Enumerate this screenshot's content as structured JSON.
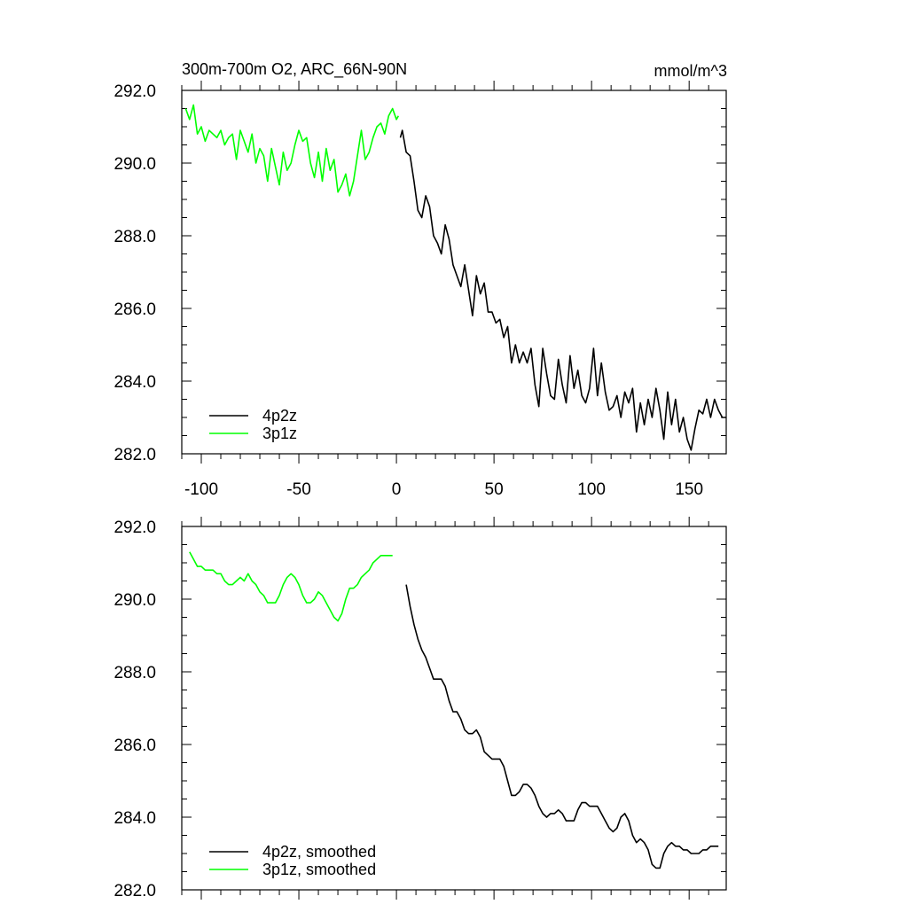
{
  "chart_data": [
    {
      "type": "line",
      "title": "300m-700m O2, ARC_66N-90N",
      "units": "mmol/m^3",
      "xlim": [
        -110,
        169
      ],
      "ylim": [
        282.0,
        292.0
      ],
      "x_ticks": [
        -100,
        -50,
        0,
        50,
        100,
        150
      ],
      "x_tick_labels": [
        "-100",
        "-50",
        "0",
        "50",
        "100",
        "150"
      ],
      "y_ticks": [
        282,
        284,
        286,
        288,
        290,
        292
      ],
      "y_tick_labels": [
        "282.0",
        "284.0",
        "286.0",
        "288.0",
        "290.0",
        "292.0"
      ],
      "legend_position": "bottom-left",
      "series": [
        {
          "name": "4p2z",
          "color": "#000000",
          "x": [
            2,
            3,
            5,
            7,
            9,
            11,
            13,
            15,
            17,
            19,
            21,
            23,
            25,
            27,
            29,
            31,
            33,
            35,
            37,
            39,
            41,
            43,
            45,
            47,
            49,
            51,
            53,
            55,
            57,
            59,
            61,
            63,
            65,
            67,
            69,
            71,
            73,
            75,
            77,
            79,
            81,
            83,
            85,
            87,
            89,
            91,
            93,
            95,
            97,
            99,
            101,
            103,
            105,
            107,
            109,
            111,
            113,
            115,
            117,
            119,
            121,
            123,
            125,
            127,
            129,
            131,
            133,
            135,
            137,
            139,
            141,
            143,
            145,
            147,
            149,
            151,
            153,
            155,
            157,
            159,
            161,
            163,
            165,
            167,
            169
          ],
          "values": [
            290.7,
            290.9,
            290.3,
            290.2,
            289.5,
            288.7,
            288.5,
            289.1,
            288.8,
            288.0,
            287.8,
            287.5,
            288.3,
            287.9,
            287.2,
            286.9,
            286.6,
            287.2,
            286.5,
            285.8,
            286.9,
            286.4,
            286.7,
            285.9,
            285.9,
            285.6,
            285.7,
            285.2,
            285.5,
            284.5,
            285.0,
            284.5,
            284.8,
            284.5,
            284.9,
            283.9,
            283.3,
            284.9,
            284.2,
            283.6,
            283.5,
            284.6,
            283.9,
            283.4,
            284.7,
            283.8,
            284.3,
            283.6,
            283.4,
            283.8,
            284.9,
            283.6,
            284.5,
            283.7,
            283.2,
            283.3,
            283.6,
            283.0,
            283.7,
            283.4,
            283.8,
            282.6,
            283.4,
            282.8,
            283.5,
            283.0,
            283.8,
            283.2,
            282.4,
            283.7,
            282.8,
            283.5,
            282.6,
            283.0,
            282.4,
            282.1,
            282.7,
            283.2,
            283.1,
            283.5,
            283.0,
            283.5,
            283.2,
            283.0,
            283.0
          ]
        },
        {
          "name": "3p1z",
          "color": "#00ff00",
          "x": [
            -108,
            -106,
            -104,
            -102,
            -100,
            -98,
            -96,
            -94,
            -92,
            -90,
            -88,
            -86,
            -84,
            -82,
            -80,
            -78,
            -76,
            -74,
            -72,
            -70,
            -68,
            -66,
            -64,
            -62,
            -60,
            -58,
            -56,
            -54,
            -52,
            -50,
            -48,
            -46,
            -44,
            -42,
            -40,
            -38,
            -36,
            -34,
            -32,
            -30,
            -28,
            -26,
            -24,
            -22,
            -20,
            -18,
            -16,
            -14,
            -12,
            -10,
            -8,
            -6,
            -4,
            -2,
            0,
            1
          ],
          "values": [
            291.5,
            291.2,
            291.6,
            290.8,
            291.0,
            290.6,
            290.9,
            290.8,
            290.7,
            290.9,
            290.5,
            290.7,
            290.8,
            290.1,
            290.9,
            290.6,
            290.3,
            290.8,
            290.0,
            290.4,
            290.2,
            289.5,
            290.4,
            289.9,
            289.4,
            290.3,
            289.8,
            290.0,
            290.5,
            290.9,
            290.6,
            290.7,
            290.0,
            289.6,
            290.3,
            289.5,
            290.4,
            289.8,
            290.1,
            289.2,
            289.4,
            289.7,
            289.1,
            289.5,
            290.2,
            290.9,
            290.1,
            290.3,
            290.7,
            291.0,
            291.1,
            290.8,
            291.3,
            291.5,
            291.2,
            291.3
          ]
        }
      ]
    },
    {
      "type": "line",
      "xlim": [
        -110,
        169
      ],
      "ylim": [
        282.0,
        292.0
      ],
      "y_ticks": [
        282,
        284,
        286,
        288,
        290,
        292
      ],
      "y_tick_labels": [
        "282.0",
        "284.0",
        "286.0",
        "288.0",
        "290.0",
        "292.0"
      ],
      "legend_position": "bottom-left",
      "series": [
        {
          "name": "4p2z, smoothed",
          "color": "#000000",
          "x": [
            5,
            7,
            9,
            11,
            13,
            15,
            17,
            19,
            21,
            23,
            25,
            27,
            29,
            31,
            33,
            35,
            37,
            39,
            41,
            43,
            45,
            47,
            49,
            51,
            53,
            55,
            57,
            59,
            61,
            63,
            65,
            67,
            69,
            71,
            73,
            75,
            77,
            79,
            81,
            83,
            85,
            87,
            89,
            91,
            93,
            95,
            97,
            99,
            101,
            103,
            105,
            107,
            109,
            111,
            113,
            115,
            117,
            119,
            121,
            123,
            125,
            127,
            129,
            131,
            133,
            135,
            137,
            139,
            141,
            143,
            145,
            147,
            149,
            151,
            153,
            155,
            157,
            159,
            161,
            163,
            165
          ],
          "values": [
            290.4,
            289.8,
            289.3,
            288.9,
            288.6,
            288.4,
            288.1,
            287.8,
            287.8,
            287.8,
            287.6,
            287.2,
            286.9,
            286.9,
            286.7,
            286.4,
            286.3,
            286.3,
            286.4,
            286.2,
            285.8,
            285.7,
            285.6,
            285.6,
            285.6,
            285.4,
            285.0,
            284.6,
            284.6,
            284.7,
            284.9,
            284.9,
            284.8,
            284.6,
            284.3,
            284.1,
            284.0,
            284.1,
            284.1,
            284.2,
            284.1,
            283.9,
            283.9,
            283.9,
            284.2,
            284.4,
            284.4,
            284.3,
            284.3,
            284.3,
            284.1,
            283.9,
            283.7,
            283.6,
            283.7,
            284.0,
            284.1,
            283.9,
            283.5,
            283.3,
            283.4,
            283.3,
            283.1,
            282.7,
            282.6,
            282.6,
            283.0,
            283.2,
            283.3,
            283.2,
            283.2,
            283.1,
            283.1,
            283.0,
            283.0,
            283.0,
            283.1,
            283.1,
            283.2,
            283.2,
            283.2
          ]
        },
        {
          "name": "3p1z, smoothed",
          "color": "#00ff00",
          "x": [
            -106,
            -104,
            -102,
            -100,
            -98,
            -96,
            -94,
            -92,
            -90,
            -88,
            -86,
            -84,
            -82,
            -80,
            -78,
            -76,
            -74,
            -72,
            -70,
            -68,
            -66,
            -64,
            -62,
            -60,
            -58,
            -56,
            -54,
            -52,
            -50,
            -48,
            -46,
            -44,
            -42,
            -40,
            -38,
            -36,
            -34,
            -32,
            -30,
            -28,
            -26,
            -24,
            -22,
            -20,
            -18,
            -16,
            -14,
            -12,
            -10,
            -8,
            -6,
            -4,
            -2
          ],
          "values": [
            291.3,
            291.1,
            290.9,
            290.9,
            290.8,
            290.8,
            290.8,
            290.7,
            290.7,
            290.5,
            290.4,
            290.4,
            290.5,
            290.6,
            290.5,
            290.7,
            290.5,
            290.4,
            290.2,
            290.1,
            289.9,
            289.9,
            289.9,
            290.1,
            290.4,
            290.6,
            290.7,
            290.6,
            290.4,
            290.1,
            289.9,
            289.9,
            290.0,
            290.2,
            290.1,
            289.9,
            289.7,
            289.5,
            289.4,
            289.6,
            290.0,
            290.3,
            290.3,
            290.4,
            290.6,
            290.7,
            290.8,
            291.0,
            291.1,
            291.2,
            291.2,
            291.2,
            291.2
          ]
        }
      ]
    }
  ]
}
